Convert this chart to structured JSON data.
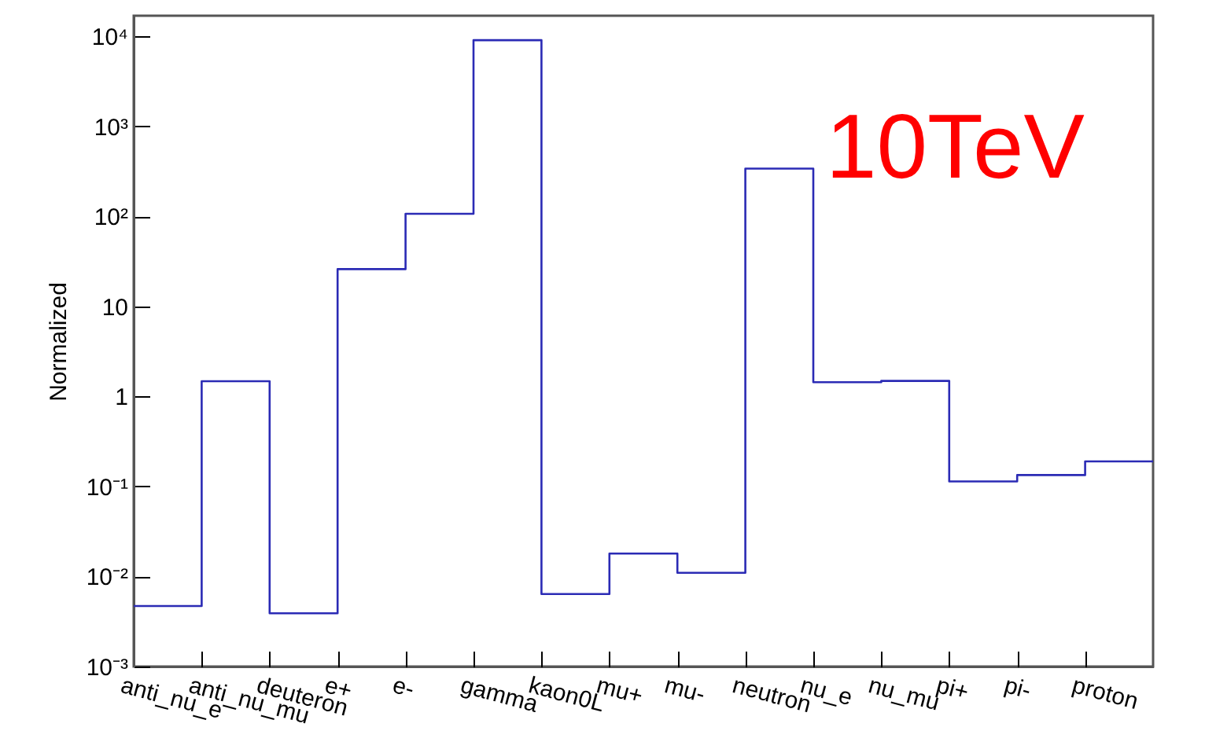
{
  "chart_data": {
    "type": "step",
    "ylabel": "Normalized",
    "annotations": [
      "10TeV"
    ],
    "categories": [
      "anti_nu_e",
      "anti_nu_mu",
      "deuteron",
      "e+",
      "e-",
      "gamma",
      "kaon0L",
      "mu+",
      "mu-",
      "neutron",
      "nu_e",
      "nu_mu",
      "pi+",
      "pi-",
      "proton"
    ],
    "values": [
      0.0047,
      1.48,
      0.0039,
      26,
      107,
      9100,
      0.0064,
      0.018,
      0.011,
      340,
      1.44,
      1.49,
      0.114,
      0.134,
      0.19
    ],
    "color": "#2b2bb5",
    "log": true,
    "ylim": [
      0.001,
      17000
    ],
    "yticks": [
      {
        "value": 0.001,
        "label": "10⁻³"
      },
      {
        "value": 0.01,
        "label": "10⁻²"
      },
      {
        "value": 0.1,
        "label": "10⁻¹"
      },
      1,
      10,
      {
        "value": 100,
        "label": "10²"
      },
      {
        "value": 1000,
        "label": "10³"
      },
      {
        "value": 10000,
        "label": "10⁴"
      }
    ],
    "grid": false
  }
}
